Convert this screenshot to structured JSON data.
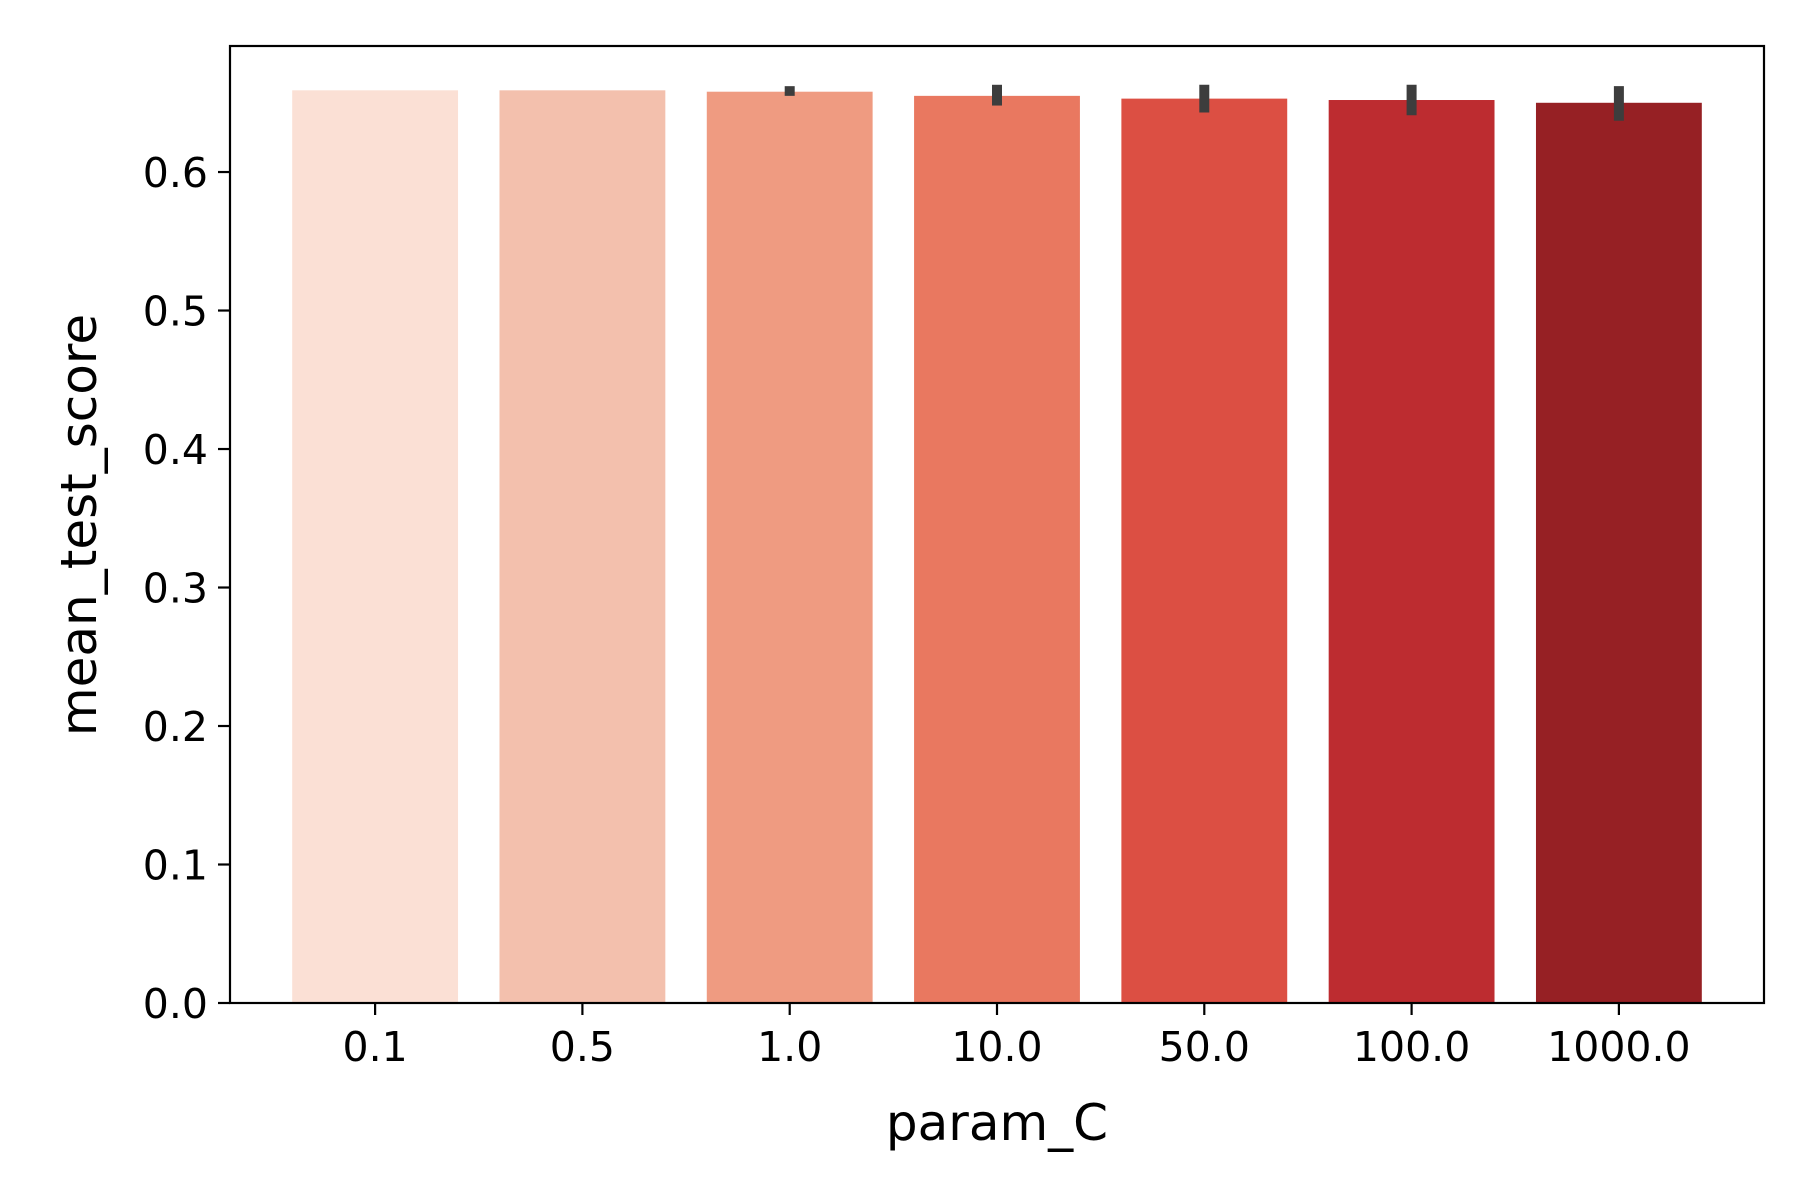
{
  "chart_data": {
    "type": "bar",
    "title": "",
    "xlabel": "param_C",
    "ylabel": "mean_test_score",
    "categories": [
      "0.1",
      "0.5",
      "1.0",
      "10.0",
      "50.0",
      "100.0",
      "1000.0"
    ],
    "values": [
      0.659,
      0.659,
      0.658,
      0.655,
      0.653,
      0.652,
      0.65
    ],
    "error_low": [
      0.659,
      0.659,
      0.655,
      0.648,
      0.643,
      0.641,
      0.637
    ],
    "error_high": [
      0.659,
      0.659,
      0.662,
      0.663,
      0.663,
      0.663,
      0.662
    ],
    "colors": [
      "#fbe0d5",
      "#f3c0ad",
      "#ef9b81",
      "#e97860",
      "#dc4f43",
      "#bd2c30",
      "#962024"
    ],
    "error_bar_color": "#3d3d3d",
    "ylim": [
      0,
      0.691
    ],
    "yticks": [
      "0.0",
      "0.1",
      "0.2",
      "0.3",
      "0.4",
      "0.5",
      "0.6"
    ],
    "grid": false,
    "legend": "none"
  }
}
